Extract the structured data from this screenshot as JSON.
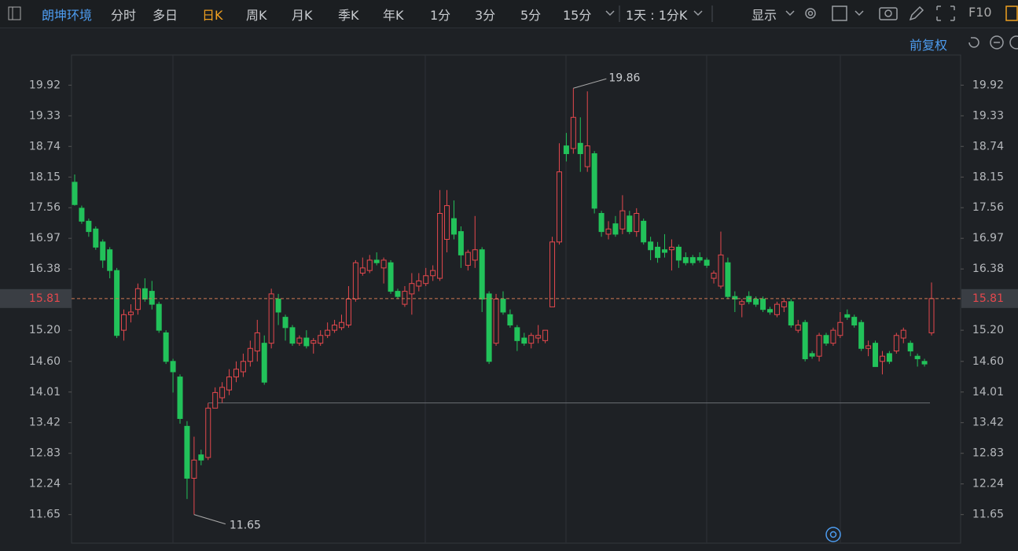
{
  "toolbar": {
    "stock": "朗坤环境",
    "periods": [
      "分时",
      "多日",
      "日K",
      "周K",
      "月K",
      "季K",
      "年K",
      "1分",
      "3分",
      "5分",
      "15分"
    ],
    "interval": "1天 : 1分K",
    "display": "显示",
    "f10": "F10",
    "adjust": "前复权"
  },
  "chart_data": {
    "type": "candlestick",
    "open": [
      18.05,
      17.55,
      17.3,
      17.15,
      16.9,
      16.75,
      16.35,
      15.2,
      15.5,
      15.6,
      16.0,
      15.95,
      15.7,
      15.15,
      14.6,
      14.3,
      13.35,
      12.35,
      12.8,
      12.75,
      13.7,
      13.9,
      14.05,
      14.3,
      14.4,
      14.6,
      14.8,
      14.95,
      14.95,
      15.8,
      15.45,
      15.25,
      14.95,
      15.05,
      14.95,
      14.95,
      15.1,
      15.2,
      15.25,
      15.3,
      15.8,
      16.3,
      16.35,
      16.55,
      16.4,
      16.5,
      15.95,
      15.7,
      15.9,
      16.05,
      16.1,
      16.25,
      16.2,
      16.95,
      17.35,
      17.1,
      16.45,
      16.55,
      16.75,
      15.9,
      14.95,
      15.8,
      15.5,
      15.25,
      15.05,
      14.95,
      15.05,
      15.0,
      15.65,
      16.9,
      18.75,
      18.7,
      18.8,
      18.35,
      18.6,
      17.45,
      17.05,
      17.25,
      17.15,
      17.4,
      17.1,
      17.3,
      16.9,
      16.8,
      16.75,
      16.75,
      16.8,
      16.6,
      16.6,
      16.6,
      16.55,
      16.2,
      16.05,
      16.5,
      15.85,
      15.7,
      15.85,
      15.8,
      15.8,
      15.6,
      15.5,
      15.65,
      15.75,
      15.2,
      15.35,
      14.75,
      14.7,
      15.1,
      14.95,
      15.1,
      15.5,
      15.45,
      15.35,
      14.85,
      14.95,
      14.6,
      14.75,
      14.8,
      15.05,
      14.95,
      14.7,
      14.6,
      15.15
    ],
    "high": [
      18.2,
      17.6,
      17.35,
      17.2,
      16.95,
      16.8,
      16.4,
      15.6,
      15.7,
      16.1,
      16.2,
      16.15,
      15.75,
      15.2,
      14.65,
      14.35,
      13.45,
      13.15,
      12.9,
      13.8,
      14.1,
      14.2,
      14.45,
      14.6,
      14.75,
      15.0,
      15.4,
      15.1,
      16.0,
      15.9,
      15.5,
      15.3,
      15.1,
      15.2,
      15.05,
      15.2,
      15.35,
      15.4,
      15.5,
      16.05,
      16.55,
      16.6,
      16.65,
      16.7,
      16.6,
      16.55,
      16.0,
      16.05,
      16.3,
      16.3,
      16.4,
      16.45,
      17.9,
      17.9,
      17.7,
      17.2,
      16.75,
      17.4,
      16.8,
      15.95,
      15.9,
      15.95,
      15.6,
      15.3,
      15.15,
      15.15,
      15.3,
      15.2,
      17.0,
      18.8,
      19.0,
      19.86,
      19.3,
      19.8,
      18.65,
      17.5,
      17.3,
      17.4,
      17.8,
      17.5,
      17.55,
      17.35,
      17.0,
      16.9,
      17.05,
      16.95,
      16.85,
      16.7,
      16.65,
      16.7,
      16.6,
      16.35,
      17.1,
      16.6,
      15.95,
      15.8,
      15.95,
      15.85,
      15.85,
      15.65,
      15.75,
      15.8,
      15.8,
      15.4,
      15.4,
      14.8,
      15.15,
      15.15,
      15.25,
      15.55,
      15.6,
      15.5,
      15.4,
      15.0,
      15.0,
      14.8,
      14.8,
      15.15,
      15.25,
      15.0,
      14.75,
      14.65,
      16.12
    ],
    "low": [
      17.6,
      17.25,
      17.0,
      16.75,
      16.4,
      16.2,
      15.05,
      15.0,
      15.35,
      15.5,
      15.75,
      15.6,
      15.15,
      14.55,
      14.0,
      13.4,
      11.95,
      11.65,
      12.6,
      12.7,
      13.7,
      13.8,
      13.95,
      14.2,
      14.3,
      14.5,
      14.6,
      14.15,
      14.85,
      15.3,
      15.0,
      14.9,
      14.9,
      14.85,
      14.75,
      14.9,
      15.05,
      15.15,
      15.2,
      15.25,
      15.75,
      16.25,
      16.3,
      16.45,
      16.1,
      15.9,
      15.8,
      15.65,
      15.5,
      15.95,
      16.05,
      16.15,
      16.15,
      16.7,
      16.95,
      16.4,
      16.35,
      16.4,
      15.55,
      14.55,
      14.9,
      15.5,
      15.25,
      14.8,
      14.9,
      14.85,
      14.95,
      14.95,
      15.65,
      16.85,
      18.45,
      18.6,
      18.25,
      18.25,
      17.45,
      17.0,
      16.95,
      17.0,
      17.05,
      17.05,
      17.0,
      16.85,
      16.55,
      16.5,
      16.6,
      16.35,
      16.4,
      16.45,
      16.45,
      16.5,
      16.4,
      16.1,
      16.0,
      15.8,
      15.55,
      15.45,
      15.7,
      15.65,
      15.55,
      15.5,
      15.45,
      15.55,
      15.25,
      15.15,
      14.6,
      14.65,
      14.6,
      14.9,
      14.9,
      15.05,
      15.4,
      15.25,
      14.8,
      14.7,
      14.5,
      14.35,
      14.55,
      14.75,
      14.95,
      14.7,
      14.5,
      14.5,
      15.1
    ],
    "close": [
      17.62,
      17.3,
      17.1,
      16.8,
      16.55,
      16.35,
      15.1,
      15.5,
      15.55,
      16.0,
      15.8,
      15.7,
      15.2,
      14.6,
      14.4,
      13.5,
      12.35,
      12.7,
      12.7,
      13.7,
      14.0,
      14.1,
      14.3,
      14.45,
      14.6,
      14.85,
      15.15,
      14.2,
      15.9,
      15.55,
      15.25,
      14.95,
      15.05,
      14.9,
      15.0,
      15.1,
      15.2,
      15.3,
      15.35,
      15.8,
      16.5,
      16.4,
      16.55,
      16.5,
      16.55,
      15.95,
      15.85,
      15.95,
      16.1,
      16.15,
      16.25,
      16.35,
      17.45,
      17.6,
      17.05,
      16.65,
      16.7,
      16.75,
      15.8,
      14.6,
      15.8,
      15.55,
      15.3,
      15.0,
      14.95,
      15.1,
      15.1,
      15.2,
      16.9,
      18.25,
      18.6,
      19.3,
      18.6,
      18.75,
      17.55,
      17.1,
      17.15,
      17.05,
      17.5,
      17.1,
      17.45,
      16.9,
      16.75,
      16.6,
      16.7,
      16.8,
      16.55,
      16.5,
      16.5,
      16.55,
      16.45,
      16.3,
      16.65,
      15.85,
      15.8,
      15.75,
      15.75,
      15.7,
      15.6,
      15.55,
      15.7,
      15.75,
      15.3,
      15.3,
      14.65,
      14.7,
      15.1,
      14.95,
      15.2,
      15.35,
      15.45,
      15.3,
      14.85,
      14.9,
      14.5,
      14.7,
      14.6,
      15.1,
      15.2,
      14.8,
      14.65,
      14.55,
      15.81
    ],
    "up_color": "#e5484d",
    "down_color": "#22c25a",
    "ylim": [
      11.1,
      20.5
    ],
    "yticks": [
      19.92,
      19.33,
      18.74,
      18.15,
      17.56,
      16.97,
      16.38,
      {
        "value": 15.2,
        "label": "15.20"
      },
      {
        "value": 14.6,
        "label": "14.60"
      },
      14.01,
      13.42,
      12.83,
      12.24,
      11.65
    ]
  }
}
